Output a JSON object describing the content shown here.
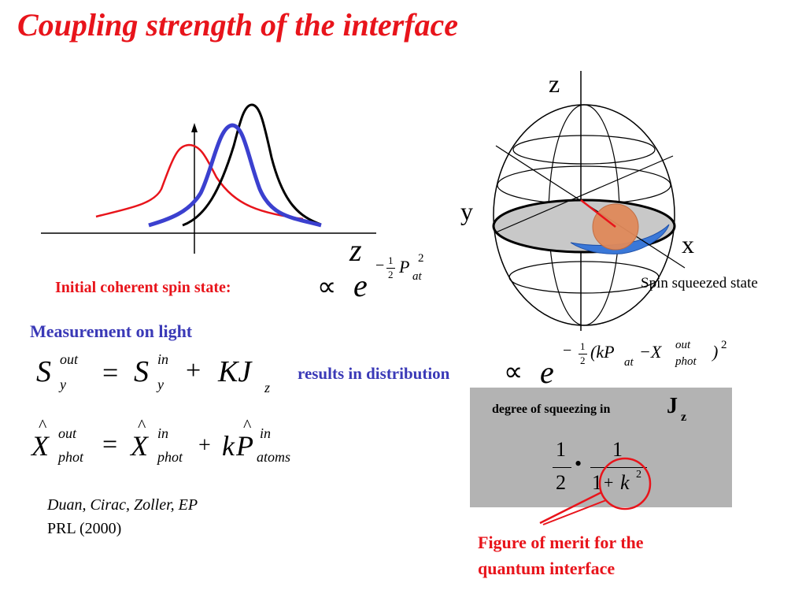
{
  "title": "Coupling strength of the interface",
  "plot": {
    "axis_label": "z"
  },
  "initial_state": {
    "label": "Initial coherent spin state:",
    "propto": "∝",
    "e": "e",
    "exp_minus": "−",
    "exp_num": "1",
    "exp_den": "2",
    "exp_P": "P",
    "exp_sub": "at",
    "exp_sup": "2"
  },
  "measurement": {
    "heading": "Measurement on light"
  },
  "eq1": {
    "S": "S",
    "out": "out",
    "y": "y",
    "eq": "=",
    "in": "in",
    "plus": "+",
    "KJ": "KJ",
    "z": "z"
  },
  "eq2": {
    "X": "X",
    "out": "out",
    "phot": "phot",
    "eq": "=",
    "in": "in",
    "plus": "+",
    "k": "k",
    "P": "P",
    "atoms": "atoms",
    "in2": "in"
  },
  "result": {
    "label": "results in distribution",
    "propto": "∝",
    "e": "e",
    "exp_minus": "−",
    "exp_num": "1",
    "exp_den": "2",
    "exp_body": "(kP",
    "exp_at": "at",
    "exp_minus2": "−X",
    "exp_out": "out",
    "exp_phot": "phot",
    "exp_close": ")",
    "exp_sup": "2"
  },
  "reference": {
    "authors": "Duan, Cirac, Zoller, EP",
    "journal": "PRL (2000)"
  },
  "sphere": {
    "z": "z",
    "y": "y",
    "x": "x",
    "caption": "Spin squeezed state"
  },
  "squeezing": {
    "label": "degree of squeezing in",
    "J": "J",
    "J_sub": "z",
    "f1_num": "1",
    "f1_den": "2",
    "dot": "•",
    "f2_num": "1",
    "f2_den_1": "1",
    "f2_den_plus": "+",
    "f2_den_k": "k",
    "f2_den_sup": "2"
  },
  "figure_of_merit": {
    "line1": "Figure of merit for the",
    "line2": "quantum interface"
  },
  "colors": {
    "title": "#e8141b",
    "blue_text": "#3a39b7",
    "box": "#b3b3b3",
    "red_curve": "#e8141b",
    "blue_curve": "#3b40cf",
    "black_curve": "#000000",
    "orange_disc": "#e0895a",
    "blue_band": "#3a78d8"
  }
}
